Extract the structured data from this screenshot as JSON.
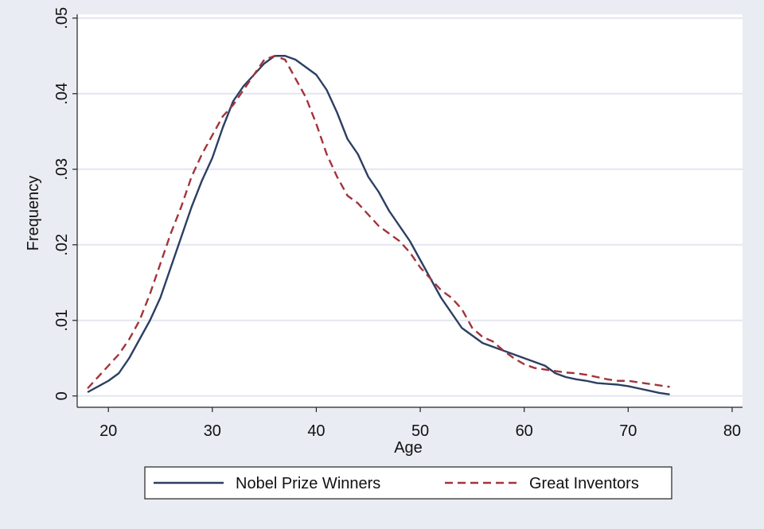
{
  "chart_data": {
    "type": "line",
    "xlabel": "Age",
    "ylabel": "Frequency",
    "xlim": [
      17,
      81
    ],
    "ylim": [
      -0.0015,
      0.0505
    ],
    "x_ticks": [
      20,
      30,
      40,
      50,
      60,
      70,
      80
    ],
    "x_tick_labels": [
      "20",
      "30",
      "40",
      "50",
      "60",
      "70",
      "80"
    ],
    "y_ticks": [
      0,
      0.01,
      0.02,
      0.03,
      0.04,
      0.05
    ],
    "y_tick_labels": [
      "0",
      ".01",
      ".02",
      ".03",
      ".04",
      ".05"
    ],
    "grid": "horizontal",
    "legend_position": "bottom",
    "series": [
      {
        "name": "Nobel Prize Winners",
        "color": "#2b3f63",
        "dash": "solid",
        "x": [
          18,
          20,
          21,
          22,
          23,
          24,
          25,
          26,
          27,
          28,
          29,
          30,
          31,
          32,
          33,
          34,
          35,
          36,
          37,
          38,
          39,
          40,
          41,
          42,
          43,
          44,
          45,
          46,
          47,
          48,
          49,
          50,
          51,
          52,
          53,
          54,
          55,
          56,
          57,
          58,
          59,
          60,
          61,
          62,
          63,
          64,
          65,
          66,
          67,
          68,
          69,
          70,
          71,
          72,
          73,
          74
        ],
        "y": [
          0.0005,
          0.002,
          0.003,
          0.005,
          0.0075,
          0.01,
          0.013,
          0.017,
          0.021,
          0.025,
          0.0285,
          0.0315,
          0.0355,
          0.039,
          0.041,
          0.0425,
          0.044,
          0.045,
          0.045,
          0.0445,
          0.0435,
          0.0425,
          0.0405,
          0.0375,
          0.034,
          0.032,
          0.029,
          0.027,
          0.0245,
          0.0225,
          0.0205,
          0.018,
          0.0155,
          0.013,
          0.011,
          0.009,
          0.008,
          0.007,
          0.0065,
          0.006,
          0.0055,
          0.005,
          0.0045,
          0.004,
          0.003,
          0.0025,
          0.0022,
          0.002,
          0.0017,
          0.0016,
          0.0015,
          0.0013,
          0.001,
          0.0007,
          0.0004,
          0.0002
        ]
      },
      {
        "name": "Great Inventors",
        "color": "#a3343b",
        "dash": "dashed",
        "x": [
          18,
          20,
          21,
          22,
          23,
          24,
          25,
          26,
          27,
          28,
          29,
          30,
          31,
          32,
          33,
          34,
          35,
          36,
          37,
          38,
          39,
          40,
          41,
          42,
          43,
          44,
          45,
          46,
          47,
          48,
          49,
          50,
          51,
          52,
          53,
          54,
          55,
          56,
          57,
          58,
          59,
          60,
          61,
          62,
          63,
          64,
          65,
          66,
          67,
          68,
          69,
          70,
          71,
          72,
          73,
          74
        ],
        "y": [
          0.001,
          0.004,
          0.0055,
          0.0075,
          0.01,
          0.0135,
          0.0175,
          0.0215,
          0.025,
          0.029,
          0.032,
          0.0345,
          0.037,
          0.0385,
          0.0405,
          0.0425,
          0.0445,
          0.045,
          0.0445,
          0.042,
          0.0395,
          0.036,
          0.032,
          0.029,
          0.0265,
          0.0255,
          0.024,
          0.0225,
          0.0215,
          0.0205,
          0.019,
          0.017,
          0.0155,
          0.014,
          0.013,
          0.0115,
          0.009,
          0.0078,
          0.0072,
          0.006,
          0.005,
          0.0042,
          0.0037,
          0.0035,
          0.0033,
          0.0031,
          0.003,
          0.0028,
          0.0025,
          0.0022,
          0.002,
          0.002,
          0.0018,
          0.0016,
          0.0014,
          0.0012
        ]
      }
    ]
  }
}
